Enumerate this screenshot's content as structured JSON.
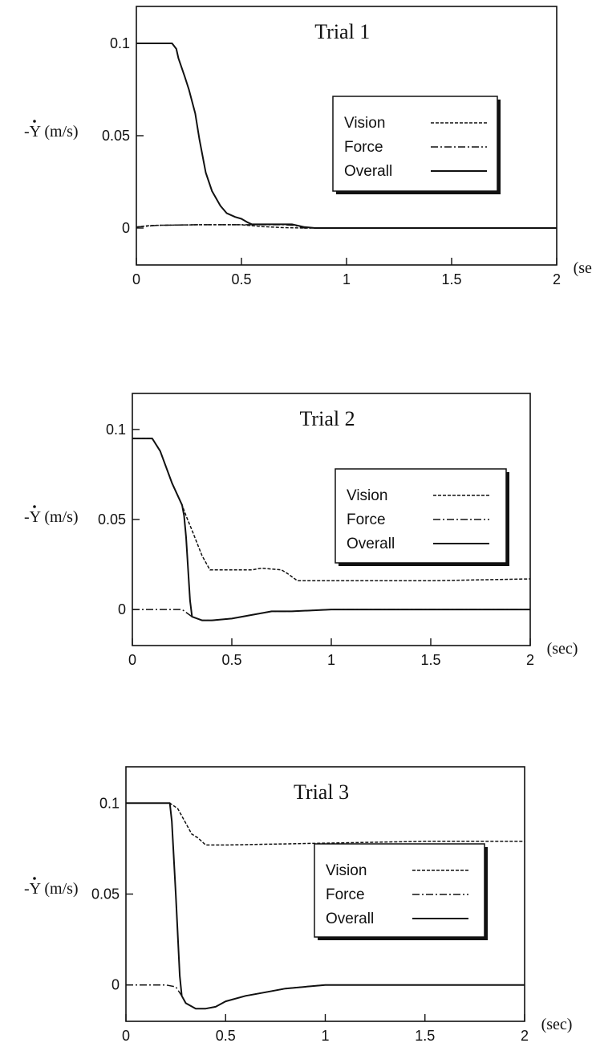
{
  "chart_data": [
    {
      "type": "line",
      "title": "Trial 1",
      "ylabel": "-Y (m/s)",
      "xunit": "(sec)",
      "xlim": [
        0,
        2
      ],
      "ylim": [
        -0.02,
        0.12
      ],
      "xticks": [
        "0",
        "0.5",
        "1",
        "1.5",
        "2"
      ],
      "yticks": [
        {
          "v": 0,
          "label": "0"
        },
        {
          "v": 0.05,
          "label": "0.05"
        },
        {
          "v": 0.1,
          "label": "0.1"
        }
      ],
      "grid": false,
      "legend_position": "right",
      "series": [
        {
          "name": "Vision",
          "style": "dotted",
          "x": [
            0,
            0.05,
            0.1,
            0.3,
            0.5,
            0.6,
            0.7,
            0.8,
            1.0,
            1.5,
            2.0
          ],
          "y": [
            0.0005,
            0.0012,
            0.0015,
            0.0018,
            0.0018,
            0.0008,
            0.0002,
            0.0,
            0.0,
            0.0,
            0.0
          ]
        },
        {
          "name": "Force",
          "style": "dashdot",
          "x": [
            0,
            0.05,
            0.1,
            0.3,
            0.5,
            0.6,
            0.7,
            0.75,
            0.8,
            1.0,
            1.5,
            2.0
          ],
          "y": [
            0.0005,
            0.001,
            0.0015,
            0.0018,
            0.0018,
            0.0018,
            0.0018,
            0.0015,
            0.0,
            0.0,
            0.0,
            0.0
          ]
        },
        {
          "name": "Overall",
          "style": "solid",
          "x": [
            0,
            0.17,
            0.19,
            0.2,
            0.23,
            0.25,
            0.28,
            0.3,
            0.33,
            0.36,
            0.4,
            0.43,
            0.47,
            0.5,
            0.53,
            0.55,
            0.6,
            0.7,
            0.74,
            0.8,
            0.85,
            1.0,
            1.5,
            2.0
          ],
          "y": [
            0.1,
            0.1,
            0.097,
            0.092,
            0.082,
            0.075,
            0.062,
            0.048,
            0.03,
            0.02,
            0.012,
            0.008,
            0.006,
            0.005,
            0.003,
            0.002,
            0.002,
            0.002,
            0.002,
            0.0005,
            0.0,
            0.0,
            0.0,
            0.0
          ]
        }
      ]
    },
    {
      "type": "line",
      "title": "Trial 2",
      "ylabel": "-Y (m/s)",
      "xunit": "(sec)",
      "xlim": [
        0,
        2
      ],
      "ylim": [
        -0.02,
        0.12
      ],
      "xticks": [
        "0",
        "0.5",
        "1",
        "1.5",
        "2"
      ],
      "yticks": [
        {
          "v": 0,
          "label": "0"
        },
        {
          "v": 0.05,
          "label": "0.05"
        },
        {
          "v": 0.1,
          "label": "0.1"
        }
      ],
      "grid": false,
      "legend_position": "right",
      "series": [
        {
          "name": "Vision",
          "style": "dotted",
          "x": [
            0,
            0.1,
            0.14,
            0.2,
            0.25,
            0.27,
            0.3,
            0.35,
            0.39,
            0.5,
            0.6,
            0.65,
            0.75,
            0.78,
            0.83,
            1.0,
            1.5,
            2.0
          ],
          "y": [
            0.095,
            0.095,
            0.088,
            0.07,
            0.058,
            0.052,
            0.044,
            0.03,
            0.022,
            0.022,
            0.022,
            0.023,
            0.022,
            0.02,
            0.016,
            0.016,
            0.016,
            0.017
          ]
        },
        {
          "name": "Force",
          "style": "dashdot",
          "x": [
            0,
            0.1,
            0.2,
            0.25,
            0.3,
            0.35,
            0.4,
            0.5,
            0.6,
            0.7,
            0.8,
            1.0,
            1.5,
            2.0
          ],
          "y": [
            0.0,
            0.0,
            0.0,
            0.0,
            -0.004,
            -0.006,
            -0.006,
            -0.005,
            -0.003,
            -0.001,
            -0.001,
            0.0,
            0.0,
            0.0
          ]
        },
        {
          "name": "Overall",
          "style": "solid",
          "x": [
            0,
            0.1,
            0.14,
            0.2,
            0.25,
            0.26,
            0.27,
            0.29,
            0.3,
            0.35,
            0.4,
            0.5,
            0.6,
            0.7,
            0.8,
            1.0,
            1.5,
            2.0
          ],
          "y": [
            0.095,
            0.095,
            0.088,
            0.07,
            0.058,
            0.052,
            0.04,
            0.005,
            -0.004,
            -0.006,
            -0.006,
            -0.005,
            -0.003,
            -0.001,
            -0.001,
            0.0,
            0.0,
            0.0
          ]
        }
      ]
    },
    {
      "type": "line",
      "title": "Trial 3",
      "ylabel": "-Y (m/s)",
      "xunit": "(sec)",
      "xlim": [
        0,
        2
      ],
      "ylim": [
        -0.02,
        0.12
      ],
      "xticks": [
        "0",
        "0.5",
        "1",
        "1.5",
        "2"
      ],
      "yticks": [
        {
          "v": 0,
          "label": "0"
        },
        {
          "v": 0.05,
          "label": "0.05"
        },
        {
          "v": 0.1,
          "label": "0.1"
        }
      ],
      "grid": false,
      "legend_position": "lower-right",
      "series": [
        {
          "name": "Vision",
          "style": "dotted",
          "x": [
            0,
            0.22,
            0.26,
            0.3,
            0.33,
            0.36,
            0.4,
            0.5,
            1.0,
            1.5,
            2.0
          ],
          "y": [
            0.1,
            0.1,
            0.097,
            0.089,
            0.083,
            0.081,
            0.077,
            0.077,
            0.078,
            0.079,
            0.079
          ]
        },
        {
          "name": "Force",
          "style": "dashdot",
          "x": [
            0,
            0.1,
            0.2,
            0.25,
            0.28,
            0.3,
            0.35,
            0.4,
            0.45,
            0.5,
            0.6,
            0.7,
            0.8,
            1.0,
            1.5,
            2.0
          ],
          "y": [
            0.0,
            0.0,
            0.0,
            -0.001,
            -0.006,
            -0.01,
            -0.013,
            -0.013,
            -0.012,
            -0.009,
            -0.006,
            -0.004,
            -0.002,
            0.0,
            0.0,
            0.0
          ]
        },
        {
          "name": "Overall",
          "style": "solid",
          "x": [
            0,
            0.22,
            0.23,
            0.25,
            0.27,
            0.28,
            0.3,
            0.35,
            0.4,
            0.45,
            0.5,
            0.6,
            0.7,
            0.8,
            1.0,
            1.5,
            2.0
          ],
          "y": [
            0.1,
            0.1,
            0.09,
            0.05,
            0.005,
            -0.006,
            -0.01,
            -0.013,
            -0.013,
            -0.012,
            -0.009,
            -0.006,
            -0.004,
            -0.002,
            0.0,
            0.0,
            0.0
          ]
        }
      ]
    }
  ]
}
